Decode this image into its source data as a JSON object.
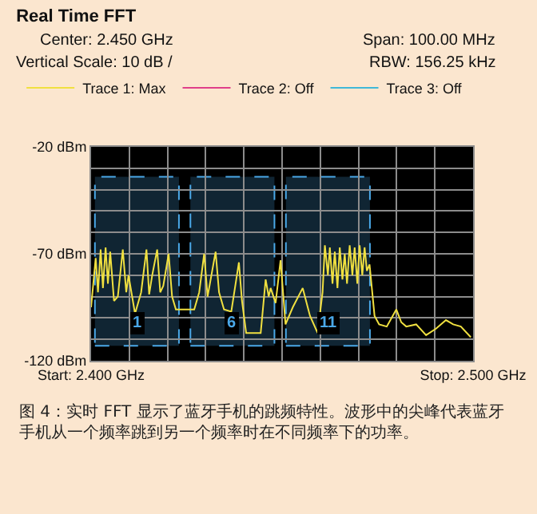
{
  "chart_data": {
    "type": "line",
    "title": "Real Time FFT",
    "annotations": [
      "Center: 2.450 GHz",
      "Span: 100.00 MHz",
      "Vertical Scale: 10 dB /",
      "RBW: 156.25 kHz",
      "图 4：实时 FFT 显示了蓝牙手机的跳频特性。波形中的尖峰代表蓝牙手机从一个频率跳到另一个频率时在不同频率下的功率。"
    ],
    "x": [
      2.4,
      2.4012,
      2.4018,
      2.4025,
      2.4031,
      2.4038,
      2.4044,
      2.405,
      2.406,
      2.407,
      2.4083,
      2.4092,
      2.4098,
      2.4115,
      2.4131,
      2.4145,
      2.4152,
      2.416,
      2.4173,
      2.4181,
      2.4189,
      2.4203,
      2.4212,
      2.4222,
      2.4251,
      2.427,
      2.4283,
      2.4296,
      2.4305,
      2.4311,
      2.4326,
      2.4335,
      2.4348,
      2.4367,
      2.4387,
      2.4395,
      2.4406,
      2.4444,
      2.4457,
      2.4465,
      2.447,
      2.4483,
      2.4496,
      2.4509,
      2.4528,
      2.4554,
      2.4573,
      2.4593,
      2.4606,
      2.4612,
      2.462,
      2.4625,
      2.4632,
      2.4638,
      2.4645,
      2.4651,
      2.4658,
      2.4664,
      2.467,
      2.4677,
      2.4684,
      2.469,
      2.4697,
      2.4703,
      2.471,
      2.4716,
      2.4722,
      2.4729,
      2.4742,
      2.4754,
      2.4774,
      2.4799,
      2.4812,
      2.4825,
      2.4851,
      2.4877,
      2.4903,
      2.4929,
      2.4948,
      2.4968,
      2.4994
    ],
    "series": [
      {
        "name": "Trace 1: Max",
        "color": "#f0e040",
        "values": [
          -95,
          -72,
          -88,
          -68,
          -86,
          -67,
          -84,
          -69,
          -92,
          -90,
          -68,
          -88,
          -80,
          -98,
          -88,
          -68,
          -89,
          -80,
          -68,
          -88,
          -85,
          -70,
          -90,
          -96,
          -96,
          -96,
          -88,
          -70,
          -90,
          -84,
          -69,
          -88,
          -96,
          -97,
          -74,
          -92,
          -107,
          -107,
          -82,
          -90,
          -86,
          -93,
          -73,
          -103,
          -95,
          -86,
          -99,
          -107,
          -88,
          -66,
          -80,
          -67,
          -84,
          -69,
          -86,
          -67,
          -82,
          -70,
          -84,
          -66,
          -80,
          -67,
          -84,
          -66,
          -80,
          -67,
          -78,
          -75,
          -99,
          -103,
          -104,
          -96,
          -102,
          -104,
          -103,
          -108,
          -105,
          -101,
          -103,
          -104,
          -109
        ]
      },
      {
        "name": "Trace 2: Off",
        "color": "#e0408a",
        "values": [
          null,
          null,
          null,
          null,
          null,
          null,
          null,
          null,
          null,
          null,
          null,
          null,
          null,
          null,
          null,
          null,
          null,
          null,
          null,
          null,
          null,
          null,
          null,
          null,
          null,
          null,
          null,
          null,
          null,
          null,
          null,
          null,
          null,
          null,
          null,
          null,
          null,
          null,
          null,
          null,
          null,
          null,
          null,
          null,
          null,
          null,
          null,
          null,
          null,
          null,
          null,
          null,
          null,
          null,
          null,
          null,
          null,
          null,
          null,
          null,
          null,
          null,
          null,
          null,
          null,
          null,
          null,
          null,
          null,
          null,
          null,
          null,
          null,
          null,
          null,
          null,
          null,
          null,
          null,
          null,
          null
        ]
      },
      {
        "name": "Trace 3: Off",
        "color": "#40b8d8",
        "values": [
          null,
          null,
          null,
          null,
          null,
          null,
          null,
          null,
          null,
          null,
          null,
          null,
          null,
          null,
          null,
          null,
          null,
          null,
          null,
          null,
          null,
          null,
          null,
          null,
          null,
          null,
          null,
          null,
          null,
          null,
          null,
          null,
          null,
          null,
          null,
          null,
          null,
          null,
          null,
          null,
          null,
          null,
          null,
          null,
          null,
          null,
          null,
          null,
          null,
          null,
          null,
          null,
          null,
          null,
          null,
          null,
          null,
          null,
          null,
          null,
          null,
          null,
          null,
          null,
          null,
          null,
          null,
          null,
          null,
          null,
          null,
          null,
          null,
          null,
          null,
          null,
          null,
          null,
          null,
          null,
          null
        ]
      }
    ],
    "bands": [
      {
        "axis": "x",
        "from": 2.401,
        "to": 2.423,
        "label": "1",
        "color": "#4aa8e8"
      },
      {
        "axis": "x",
        "from": 2.426,
        "to": 2.448,
        "label": "6",
        "color": "#4aa8e8"
      },
      {
        "axis": "x",
        "from": 2.451,
        "to": 2.473,
        "label": "11",
        "color": "#4aa8e8"
      }
    ],
    "xlim": [
      2.4,
      2.5
    ],
    "xticks": [
      {
        "value": 2.4,
        "label": "Start: 2.400 GHz"
      },
      {
        "value": 2.41,
        "label": null
      },
      {
        "value": 2.42,
        "label": null
      },
      {
        "value": 2.43,
        "label": null
      },
      {
        "value": 2.44,
        "label": null
      },
      {
        "value": 2.45,
        "label": null
      },
      {
        "value": 2.46,
        "label": null
      },
      {
        "value": 2.47,
        "label": null
      },
      {
        "value": 2.48,
        "label": null
      },
      {
        "value": 2.49,
        "label": null
      },
      {
        "value": 2.5,
        "label": "Stop: 2.500 GHz"
      }
    ],
    "ylim": [
      -120,
      -20
    ],
    "yticks": [
      {
        "value": -20,
        "label": "-20 dBm"
      },
      {
        "value": -30,
        "label": null
      },
      {
        "value": -40,
        "label": null
      },
      {
        "value": -50,
        "label": null
      },
      {
        "value": -60,
        "label": null
      },
      {
        "value": -70,
        "label": "-70 dBm"
      },
      {
        "value": -80,
        "label": null
      },
      {
        "value": -90,
        "label": null
      },
      {
        "value": -100,
        "label": null
      },
      {
        "value": -110,
        "label": null
      },
      {
        "value": -120,
        "label": "-120 dBm"
      }
    ],
    "grid": true,
    "legend": "top left",
    "line_style": "solid",
    "marker": "none"
  }
}
